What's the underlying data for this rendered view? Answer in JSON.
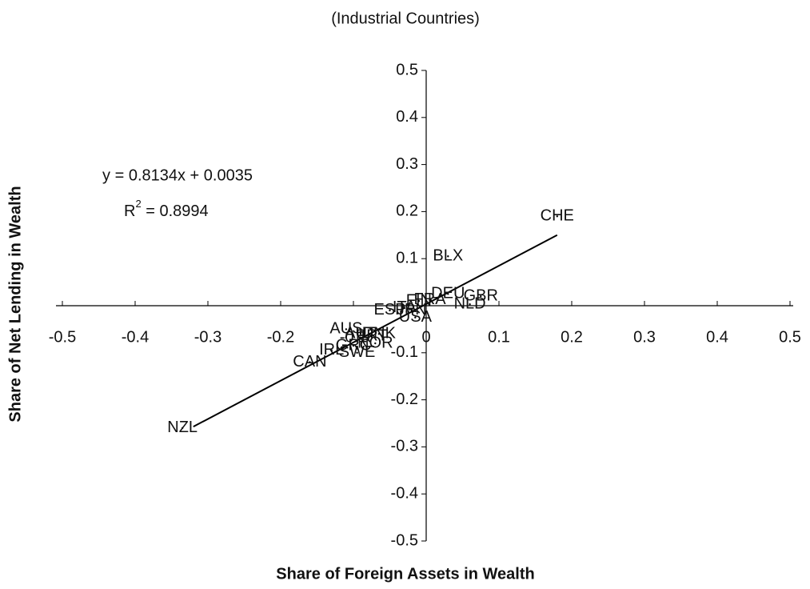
{
  "chart_data": {
    "type": "scatter",
    "title": "(Industrial Countries)",
    "x_label": "Share of Foreign Assets in Wealth",
    "y_label": "Share of Net Lending in Wealth",
    "equation": "y = 0.8134x + 0.0035",
    "r_squared": {
      "text": "R",
      "sup": "2",
      "rest": " = 0.8994"
    },
    "color": "#000000",
    "labels": [
      "CHE",
      "BLX",
      "DEU",
      "GBR",
      "FIN",
      "FRA",
      "NLD",
      "ESP",
      "ITA",
      "JPN",
      "USA",
      "AUS",
      "AUT",
      "DNK",
      "PRT",
      "GRC",
      "NOR",
      "IRL",
      "SWE",
      "CAN",
      "NZL"
    ],
    "x": [
      0.18,
      0.03,
      0.03,
      0.075,
      -0.01,
      0.005,
      0.06,
      -0.05,
      -0.03,
      -0.02,
      -0.015,
      -0.11,
      -0.09,
      -0.065,
      -0.075,
      -0.1,
      -0.07,
      -0.13,
      -0.095,
      -0.16,
      -0.335
    ],
    "values": [
      0.19,
      0.105,
      0.025,
      0.02,
      0.01,
      0.012,
      0.003,
      -0.01,
      -0.005,
      -0.01,
      -0.025,
      -0.05,
      -0.06,
      -0.06,
      -0.065,
      -0.085,
      -0.08,
      -0.095,
      -0.1,
      -0.12,
      -0.26
    ],
    "trendline": {
      "x": [
        -0.32,
        0.18
      ],
      "y": [
        -0.257,
        0.15
      ]
    },
    "xlim": [
      -0.5,
      0.5
    ],
    "ylim": [
      -0.5,
      0.5
    ],
    "xticks": [
      -0.5,
      -0.4,
      -0.3,
      -0.2,
      -0.1,
      0,
      0.1,
      0.2,
      0.3,
      0.4,
      0.5
    ],
    "yticks": [
      0.5,
      0.4,
      0.3,
      0.2,
      0.1,
      -0.1,
      -0.2,
      -0.3,
      -0.4,
      -0.5
    ],
    "grid": false
  }
}
